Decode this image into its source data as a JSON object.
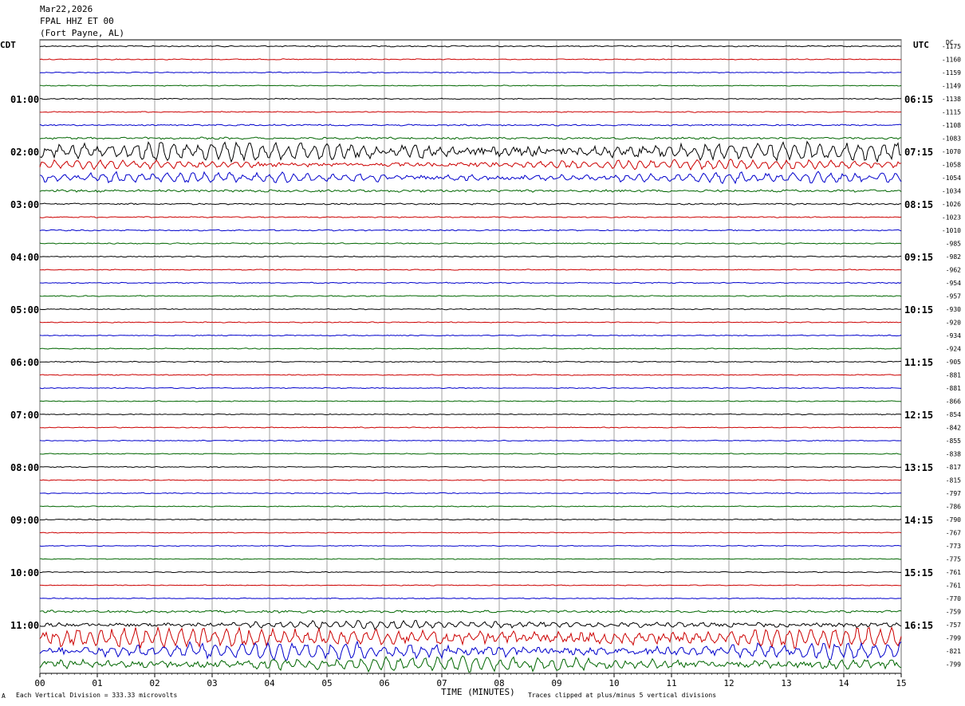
{
  "header": {
    "date": "Mar22,2026",
    "station": "FPAL HHZ ET 00",
    "location": "(Fort Payne, AL)"
  },
  "left_timezone": "CDT",
  "right_timezone": "UTC",
  "dc_label": "DC",
  "footer": {
    "scale_note": "Each Vertical Division = 333.33 microvolts",
    "clip_note": "Traces clipped at plus/minus 5 vertical divisions",
    "corner_mark": "A"
  },
  "colors": {
    "trace_cycle": [
      "#000000",
      "#cc0000",
      "#0000cc",
      "#006600"
    ],
    "grid": "#888888"
  },
  "chart_data": {
    "type": "line",
    "title": "",
    "xlabel": "TIME (MINUTES)",
    "ylabel": "",
    "xlim": [
      0,
      15
    ],
    "x_ticks": [
      "00",
      "01",
      "02",
      "03",
      "04",
      "05",
      "06",
      "07",
      "08",
      "09",
      "10",
      "11",
      "12",
      "13",
      "14",
      "15"
    ],
    "left_hour_labels": [
      "01:00",
      "02:00",
      "03:00",
      "04:00",
      "05:00",
      "06:00",
      "07:00",
      "08:00",
      "09:00",
      "10:00",
      "11:00"
    ],
    "right_hour_labels": [
      "06:15",
      "07:15",
      "08:15",
      "09:15",
      "10:15",
      "11:15",
      "12:15",
      "13:15",
      "14:15",
      "15:15",
      "16:15"
    ],
    "dc_offsets": [
      "-1175",
      "-1160",
      "-1159",
      "-1149",
      "-1138",
      "-1115",
      "-1108",
      "-1083",
      "-1070",
      "-1058",
      "-1054",
      "-1034",
      "-1026",
      "-1023",
      "-1010",
      "-985",
      "-982",
      "-962",
      "-954",
      "-957",
      "-930",
      "-920",
      "-934",
      "-924",
      "-905",
      "-881",
      "-881",
      "-866",
      "-854",
      "-842",
      "-855",
      "-838",
      "-817",
      "-815",
      "-797",
      "-786",
      "-790",
      "-767",
      "-773",
      "-775",
      "-761",
      "-761",
      "-770",
      "-759",
      "-757",
      "-799",
      "-821",
      "-799"
    ],
    "trace_amplitudes": [
      0.18,
      0.14,
      0.13,
      0.14,
      0.15,
      0.15,
      0.22,
      0.3,
      1.25,
      0.6,
      0.7,
      0.35,
      0.22,
      0.16,
      0.18,
      0.16,
      0.15,
      0.14,
      0.16,
      0.16,
      0.15,
      0.14,
      0.14,
      0.14,
      0.15,
      0.14,
      0.14,
      0.14,
      0.14,
      0.13,
      0.13,
      0.14,
      0.14,
      0.14,
      0.14,
      0.14,
      0.14,
      0.13,
      0.13,
      0.13,
      0.14,
      0.13,
      0.14,
      0.35,
      0.55,
      1.4,
      1.1,
      1.0
    ]
  }
}
